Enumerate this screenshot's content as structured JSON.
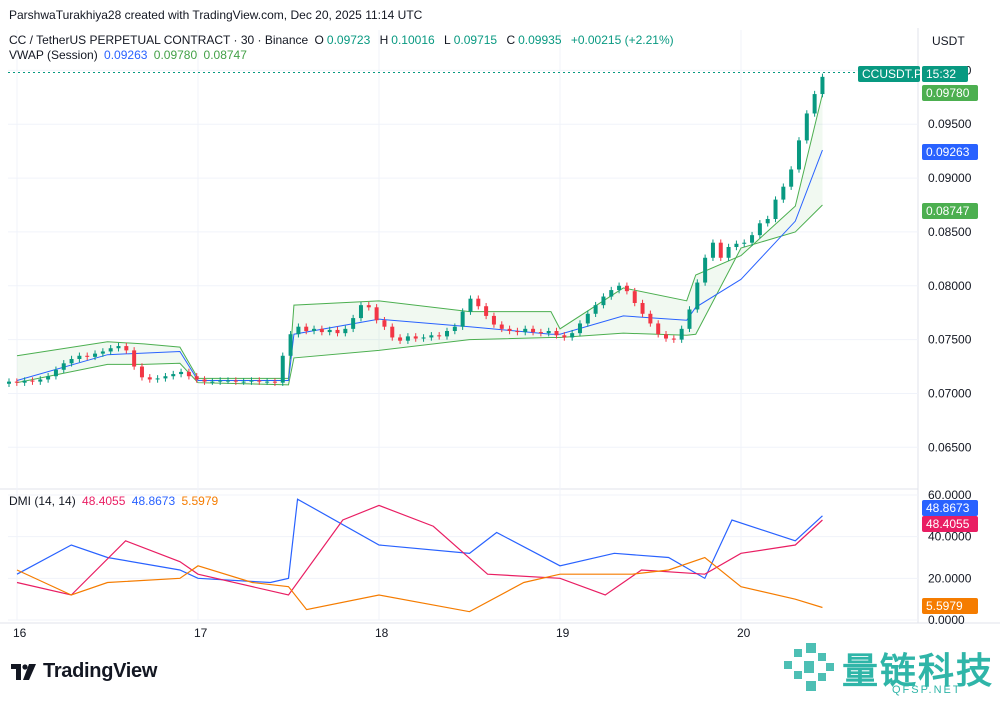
{
  "header": {
    "credit": "ParshwaTurakhiya28 created with TradingView.com, Dec 20, 2025 11:14 UTC",
    "symbol": "CC / TetherUS PERPETUAL CONTRACT · 30 · Binance",
    "ohlc": [
      {
        "k": "O",
        "v": "0.09723"
      },
      {
        "k": "H",
        "v": "0.10016"
      },
      {
        "k": "L",
        "v": "0.09715"
      },
      {
        "k": "C",
        "v": "0.09935"
      }
    ],
    "change": "+0.00215 (+2.21%)",
    "vwap_label": "VWAP (Session)",
    "vwap_values": [
      "0.09263",
      "0.09780",
      "0.08747"
    ],
    "dmi_label": "DMI (14, 14)",
    "dmi_values": [
      "48.4055",
      "48.8673",
      "5.5979"
    ]
  },
  "axis": {
    "currency": "USDT",
    "price_ticks": [
      "0.06500",
      "0.07000",
      "0.07500",
      "0.08000",
      "0.08500",
      "0.09000",
      "0.09500",
      "0.10000"
    ],
    "dmi_ticks": [
      "0.0000",
      "20.0000",
      "40.0000",
      "60.0000"
    ],
    "time_labels": [
      "16",
      "17",
      "18",
      "19",
      "20"
    ]
  },
  "badges": {
    "ticker": "CCUSDT.P",
    "countdown": "15:32",
    "upper_band": "0.09780",
    "vwap": "0.09263",
    "lower_band": "0.08747",
    "plus_di": "48.8673",
    "adx": "48.4055",
    "minus_di": "5.5979"
  },
  "colors": {
    "up": "#089981",
    "down": "#f23645",
    "vwap": "#2962ff",
    "band": "#4caf50",
    "plus_di": "#2962ff",
    "adx": "#e91e63",
    "minus_di": "#f57c00"
  },
  "logo": {
    "name": "TradingView"
  },
  "watermark": {
    "text": "量链科技",
    "sub": "QFSP.NET"
  },
  "chart_data": [
    {
      "type": "candlestick",
      "title": "CC / TetherUS PERPETUAL CONTRACT · 30 · Binance",
      "ylim": [
        0.0615,
        0.1005
      ],
      "x_labels": [
        "16",
        "17",
        "18",
        "19",
        "20"
      ],
      "series": [
        {
          "name": "VWAP",
          "x": [
            0,
            0.5,
            0.9,
            1.0,
            1.5,
            1.53,
            2.0,
            2.5,
            2.95,
            3.0,
            3.35,
            3.7,
            3.75,
            4.0,
            4.3,
            4.45
          ],
          "values": [
            0.0712,
            0.0736,
            0.0739,
            0.0712,
            0.0712,
            0.0755,
            0.0769,
            0.0762,
            0.0755,
            0.0755,
            0.0772,
            0.0768,
            0.078,
            0.0806,
            0.086,
            0.0926
          ]
        },
        {
          "name": "VWAP upper",
          "x": [
            0,
            0.5,
            0.7,
            0.9,
            1.0,
            1.5,
            1.53,
            2.0,
            2.5,
            2.95,
            3.0,
            3.35,
            3.7,
            3.75,
            4.0,
            4.3,
            4.45
          ],
          "values": [
            0.0735,
            0.0748,
            0.0746,
            0.0743,
            0.0714,
            0.0714,
            0.0782,
            0.0786,
            0.0776,
            0.0776,
            0.076,
            0.0798,
            0.0786,
            0.081,
            0.0828,
            0.0874,
            0.0978
          ]
        },
        {
          "name": "VWAP lower",
          "x": [
            0,
            0.5,
            0.7,
            0.9,
            1.0,
            1.5,
            1.53,
            2.0,
            2.5,
            2.95,
            3.0,
            3.35,
            3.7,
            3.75,
            4.0,
            4.3,
            4.45
          ],
          "values": [
            0.071,
            0.0727,
            0.0727,
            0.0728,
            0.071,
            0.0708,
            0.0733,
            0.074,
            0.075,
            0.0752,
            0.0752,
            0.0756,
            0.0754,
            0.0755,
            0.0835,
            0.085,
            0.0875
          ]
        }
      ],
      "candles_close": [
        0.0711,
        0.071,
        0.0712,
        0.0711,
        0.0713,
        0.0716,
        0.0722,
        0.0728,
        0.0732,
        0.0735,
        0.0734,
        0.0737,
        0.0739,
        0.0742,
        0.0744,
        0.074,
        0.0725,
        0.0715,
        0.0713,
        0.0714,
        0.0716,
        0.0718,
        0.072,
        0.0716,
        0.0713,
        0.0711,
        0.0711,
        0.0712,
        0.0712,
        0.0711,
        0.0711,
        0.0712,
        0.0711,
        0.0711,
        0.071,
        0.0735,
        0.0755,
        0.0762,
        0.0758,
        0.076,
        0.0757,
        0.0759,
        0.0756,
        0.076,
        0.077,
        0.0782,
        0.078,
        0.0768,
        0.0762,
        0.0752,
        0.0749,
        0.0753,
        0.0751,
        0.0752,
        0.0754,
        0.0753,
        0.0758,
        0.0762,
        0.0776,
        0.0788,
        0.0781,
        0.0772,
        0.0764,
        0.076,
        0.0758,
        0.0757,
        0.076,
        0.0757,
        0.0756,
        0.0758,
        0.0754,
        0.0752,
        0.0756,
        0.0765,
        0.0774,
        0.0782,
        0.079,
        0.0796,
        0.08,
        0.0795,
        0.0784,
        0.0774,
        0.0765,
        0.0755,
        0.0751,
        0.075,
        0.076,
        0.0778,
        0.0803,
        0.0826,
        0.084,
        0.0826,
        0.0836,
        0.0839,
        0.084,
        0.0847,
        0.0858,
        0.0862,
        0.088,
        0.0892,
        0.0908,
        0.0935,
        0.096,
        0.0978,
        0.0994
      ]
    },
    {
      "type": "line",
      "title": "DMI (14, 14)",
      "ylim": [
        0,
        60
      ],
      "series": [
        {
          "name": "+DI",
          "x": [
            0,
            0.3,
            0.5,
            0.9,
            1.0,
            1.4,
            1.5,
            1.55,
            2.0,
            2.5,
            2.65,
            3.0,
            3.3,
            3.6,
            3.8,
            3.95,
            4.3,
            4.45
          ],
          "values": [
            22,
            36,
            30,
            24,
            20,
            18,
            20,
            58,
            36,
            32,
            42,
            26,
            32,
            30,
            20,
            48,
            38,
            50
          ]
        },
        {
          "name": "ADX",
          "x": [
            0,
            0.3,
            0.6,
            0.9,
            1.0,
            1.5,
            1.8,
            2.0,
            2.3,
            2.6,
            3.0,
            3.25,
            3.45,
            3.8,
            4.0,
            4.3,
            4.45
          ],
          "values": [
            18,
            12,
            38,
            28,
            22,
            12,
            48,
            55,
            45,
            22,
            20,
            12,
            24,
            22,
            32,
            36,
            48
          ]
        },
        {
          "name": "-DI",
          "x": [
            0,
            0.3,
            0.5,
            0.9,
            1.0,
            1.3,
            1.5,
            1.6,
            2.0,
            2.5,
            2.8,
            3.0,
            3.4,
            3.6,
            3.8,
            4.0,
            4.3,
            4.45
          ],
          "values": [
            24,
            12,
            18,
            20,
            26,
            18,
            16,
            5,
            12,
            4,
            18,
            22,
            22,
            24,
            30,
            16,
            10,
            6
          ]
        }
      ]
    }
  ]
}
